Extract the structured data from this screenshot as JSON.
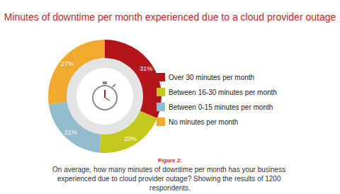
{
  "chart_data": {
    "type": "pie",
    "title": "Minutes of downtime per month experienced due to a cloud provider outage",
    "categories": [
      "Over 30 minutes per month",
      "Between 16-30 minutes per month",
      "Between 0-15 minutes per month",
      "No minutes per month"
    ],
    "values": [
      31,
      20,
      21,
      27
    ],
    "value_labels": [
      "31%",
      "20%",
      "21%",
      "27%"
    ],
    "colors": [
      "#b3151b",
      "#c4c81c",
      "#92bccb",
      "#f2aa2e"
    ],
    "data_labels": true,
    "legend": "right",
    "annotations": [
      "Figure 2:",
      "On average, how many minutes of downtime per month has your business experienced due to cloud provider outage? Showing the results of 1200 respondents."
    ]
  }
}
